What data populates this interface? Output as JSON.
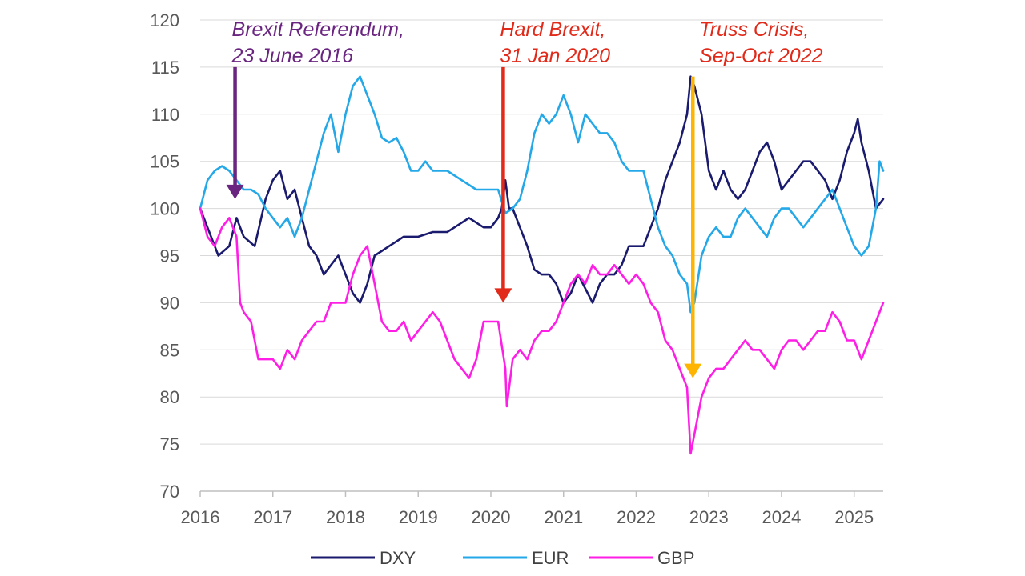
{
  "chart_data": {
    "type": "line",
    "title": "",
    "xlabel": "",
    "ylabel": "",
    "xlim": [
      2016,
      2025.4
    ],
    "ylim": [
      70,
      120
    ],
    "y_ticks": [
      70,
      75,
      80,
      85,
      90,
      95,
      100,
      105,
      110,
      115,
      120
    ],
    "x_ticks": [
      2016,
      2017,
      2018,
      2019,
      2020,
      2021,
      2022,
      2023,
      2024,
      2025
    ],
    "x_tick_labels": [
      "2016",
      "2017",
      "2018",
      "2019",
      "2020",
      "2021",
      "2022",
      "2023",
      "2024",
      "2025"
    ],
    "y_tick_labels": [
      "70",
      "75",
      "80",
      "85",
      "90",
      "95",
      "100",
      "105",
      "110",
      "115",
      "120"
    ],
    "grid": "horizontal",
    "legend_position": "bottom",
    "series": [
      {
        "name": "DXY",
        "color": "#1a1a6e",
        "points": [
          [
            2016.0,
            100
          ],
          [
            2016.1,
            98
          ],
          [
            2016.25,
            95
          ],
          [
            2016.4,
            96
          ],
          [
            2016.5,
            99
          ],
          [
            2016.6,
            97
          ],
          [
            2016.75,
            96
          ],
          [
            2016.9,
            101
          ],
          [
            2017.0,
            103
          ],
          [
            2017.1,
            104
          ],
          [
            2017.2,
            101
          ],
          [
            2017.3,
            102
          ],
          [
            2017.4,
            99
          ],
          [
            2017.5,
            96
          ],
          [
            2017.6,
            95
          ],
          [
            2017.7,
            93
          ],
          [
            2017.8,
            94
          ],
          [
            2017.9,
            95
          ],
          [
            2018.0,
            93
          ],
          [
            2018.1,
            91
          ],
          [
            2018.2,
            90
          ],
          [
            2018.3,
            92
          ],
          [
            2018.4,
            95
          ],
          [
            2018.5,
            95.5
          ],
          [
            2018.6,
            96
          ],
          [
            2018.7,
            96.5
          ],
          [
            2018.8,
            97
          ],
          [
            2018.9,
            97
          ],
          [
            2019.0,
            97
          ],
          [
            2019.2,
            97.5
          ],
          [
            2019.4,
            97.5
          ],
          [
            2019.5,
            98
          ],
          [
            2019.6,
            98.5
          ],
          [
            2019.7,
            99
          ],
          [
            2019.8,
            98.5
          ],
          [
            2019.9,
            98
          ],
          [
            2020.0,
            98
          ],
          [
            2020.1,
            99
          ],
          [
            2020.15,
            100
          ],
          [
            2020.2,
            103
          ],
          [
            2020.25,
            100
          ],
          [
            2020.3,
            100
          ],
          [
            2020.4,
            98
          ],
          [
            2020.5,
            96
          ],
          [
            2020.6,
            93.5
          ],
          [
            2020.7,
            93
          ],
          [
            2020.8,
            93
          ],
          [
            2020.9,
            92
          ],
          [
            2021.0,
            90
          ],
          [
            2021.1,
            91
          ],
          [
            2021.2,
            93
          ],
          [
            2021.3,
            91.5
          ],
          [
            2021.4,
            90
          ],
          [
            2021.5,
            92
          ],
          [
            2021.6,
            93
          ],
          [
            2021.7,
            93
          ],
          [
            2021.8,
            94
          ],
          [
            2021.9,
            96
          ],
          [
            2022.0,
            96
          ],
          [
            2022.1,
            96
          ],
          [
            2022.2,
            98
          ],
          [
            2022.3,
            100
          ],
          [
            2022.4,
            103
          ],
          [
            2022.5,
            105
          ],
          [
            2022.6,
            107
          ],
          [
            2022.7,
            110
          ],
          [
            2022.75,
            114
          ],
          [
            2022.8,
            113
          ],
          [
            2022.9,
            110
          ],
          [
            2023.0,
            104
          ],
          [
            2023.1,
            102
          ],
          [
            2023.2,
            104
          ],
          [
            2023.3,
            102
          ],
          [
            2023.4,
            101
          ],
          [
            2023.5,
            102
          ],
          [
            2023.6,
            104
          ],
          [
            2023.7,
            106
          ],
          [
            2023.8,
            107
          ],
          [
            2023.9,
            105
          ],
          [
            2024.0,
            102
          ],
          [
            2024.1,
            103
          ],
          [
            2024.2,
            104
          ],
          [
            2024.3,
            105
          ],
          [
            2024.4,
            105
          ],
          [
            2024.5,
            104
          ],
          [
            2024.6,
            103
          ],
          [
            2024.7,
            101
          ],
          [
            2024.8,
            103
          ],
          [
            2024.9,
            106
          ],
          [
            2025.0,
            108
          ],
          [
            2025.05,
            109.5
          ],
          [
            2025.1,
            107
          ],
          [
            2025.2,
            104
          ],
          [
            2025.3,
            100
          ],
          [
            2025.4,
            101
          ]
        ]
      },
      {
        "name": "EUR",
        "color": "#24a8e8",
        "points": [
          [
            2016.0,
            100
          ],
          [
            2016.1,
            103
          ],
          [
            2016.2,
            104
          ],
          [
            2016.3,
            104.5
          ],
          [
            2016.4,
            104
          ],
          [
            2016.5,
            103
          ],
          [
            2016.6,
            102
          ],
          [
            2016.7,
            102
          ],
          [
            2016.8,
            101.5
          ],
          [
            2016.9,
            100
          ],
          [
            2017.0,
            99
          ],
          [
            2017.1,
            98
          ],
          [
            2017.2,
            99
          ],
          [
            2017.3,
            97
          ],
          [
            2017.4,
            99
          ],
          [
            2017.5,
            102
          ],
          [
            2017.6,
            105
          ],
          [
            2017.7,
            108
          ],
          [
            2017.8,
            110
          ],
          [
            2017.9,
            106
          ],
          [
            2018.0,
            110
          ],
          [
            2018.1,
            113
          ],
          [
            2018.2,
            114
          ],
          [
            2018.3,
            112
          ],
          [
            2018.4,
            110
          ],
          [
            2018.5,
            107.5
          ],
          [
            2018.6,
            107
          ],
          [
            2018.7,
            107.5
          ],
          [
            2018.8,
            106
          ],
          [
            2018.9,
            104
          ],
          [
            2019.0,
            104
          ],
          [
            2019.1,
            105
          ],
          [
            2019.2,
            104
          ],
          [
            2019.3,
            104
          ],
          [
            2019.4,
            104
          ],
          [
            2019.5,
            103.5
          ],
          [
            2019.6,
            103
          ],
          [
            2019.7,
            102.5
          ],
          [
            2019.8,
            102
          ],
          [
            2019.9,
            102
          ],
          [
            2020.0,
            102
          ],
          [
            2020.1,
            102
          ],
          [
            2020.2,
            99.5
          ],
          [
            2020.3,
            100
          ],
          [
            2020.4,
            101
          ],
          [
            2020.5,
            104
          ],
          [
            2020.6,
            108
          ],
          [
            2020.7,
            110
          ],
          [
            2020.8,
            109
          ],
          [
            2020.9,
            110
          ],
          [
            2021.0,
            112
          ],
          [
            2021.1,
            110
          ],
          [
            2021.2,
            107
          ],
          [
            2021.3,
            110
          ],
          [
            2021.4,
            109
          ],
          [
            2021.5,
            108
          ],
          [
            2021.6,
            108
          ],
          [
            2021.7,
            107
          ],
          [
            2021.8,
            105
          ],
          [
            2021.9,
            104
          ],
          [
            2022.0,
            104
          ],
          [
            2022.1,
            104
          ],
          [
            2022.2,
            101
          ],
          [
            2022.3,
            98
          ],
          [
            2022.4,
            96
          ],
          [
            2022.5,
            95
          ],
          [
            2022.6,
            93
          ],
          [
            2022.7,
            92
          ],
          [
            2022.75,
            89
          ],
          [
            2022.8,
            90
          ],
          [
            2022.9,
            95
          ],
          [
            2023.0,
            97
          ],
          [
            2023.1,
            98
          ],
          [
            2023.2,
            97
          ],
          [
            2023.3,
            97
          ],
          [
            2023.4,
            99
          ],
          [
            2023.5,
            100
          ],
          [
            2023.6,
            99
          ],
          [
            2023.7,
            98
          ],
          [
            2023.8,
            97
          ],
          [
            2023.9,
            99
          ],
          [
            2024.0,
            100
          ],
          [
            2024.1,
            100
          ],
          [
            2024.2,
            99
          ],
          [
            2024.3,
            98
          ],
          [
            2024.4,
            99
          ],
          [
            2024.5,
            100
          ],
          [
            2024.6,
            101
          ],
          [
            2024.7,
            102
          ],
          [
            2024.8,
            100
          ],
          [
            2024.9,
            98
          ],
          [
            2025.0,
            96
          ],
          [
            2025.1,
            95
          ],
          [
            2025.2,
            96
          ],
          [
            2025.3,
            100
          ],
          [
            2025.35,
            105
          ],
          [
            2025.4,
            104
          ]
        ]
      },
      {
        "name": "GBP",
        "color": "#ff1ee6",
        "points": [
          [
            2016.0,
            100
          ],
          [
            2016.1,
            97
          ],
          [
            2016.2,
            96
          ],
          [
            2016.3,
            98
          ],
          [
            2016.4,
            99
          ],
          [
            2016.5,
            97
          ],
          [
            2016.55,
            90
          ],
          [
            2016.6,
            89
          ],
          [
            2016.7,
            88
          ],
          [
            2016.8,
            84
          ],
          [
            2016.9,
            84
          ],
          [
            2017.0,
            84
          ],
          [
            2017.1,
            83
          ],
          [
            2017.2,
            85
          ],
          [
            2017.3,
            84
          ],
          [
            2017.4,
            86
          ],
          [
            2017.5,
            87
          ],
          [
            2017.6,
            88
          ],
          [
            2017.7,
            88
          ],
          [
            2017.8,
            90
          ],
          [
            2017.9,
            90
          ],
          [
            2018.0,
            90
          ],
          [
            2018.1,
            93
          ],
          [
            2018.2,
            95
          ],
          [
            2018.3,
            96
          ],
          [
            2018.4,
            92
          ],
          [
            2018.5,
            88
          ],
          [
            2018.6,
            87
          ],
          [
            2018.7,
            87
          ],
          [
            2018.8,
            88
          ],
          [
            2018.9,
            86
          ],
          [
            2019.0,
            87
          ],
          [
            2019.1,
            88
          ],
          [
            2019.2,
            89
          ],
          [
            2019.3,
            88
          ],
          [
            2019.4,
            86
          ],
          [
            2019.5,
            84
          ],
          [
            2019.6,
            83
          ],
          [
            2019.7,
            82
          ],
          [
            2019.8,
            84
          ],
          [
            2019.9,
            88
          ],
          [
            2020.0,
            88
          ],
          [
            2020.1,
            88
          ],
          [
            2020.2,
            83
          ],
          [
            2020.22,
            79
          ],
          [
            2020.3,
            84
          ],
          [
            2020.4,
            85
          ],
          [
            2020.5,
            84
          ],
          [
            2020.6,
            86
          ],
          [
            2020.7,
            87
          ],
          [
            2020.8,
            87
          ],
          [
            2020.9,
            88
          ],
          [
            2021.0,
            90
          ],
          [
            2021.1,
            92
          ],
          [
            2021.2,
            93
          ],
          [
            2021.3,
            92
          ],
          [
            2021.4,
            94
          ],
          [
            2021.5,
            93
          ],
          [
            2021.6,
            93
          ],
          [
            2021.7,
            94
          ],
          [
            2021.8,
            93
          ],
          [
            2021.9,
            92
          ],
          [
            2022.0,
            93
          ],
          [
            2022.1,
            92
          ],
          [
            2022.2,
            90
          ],
          [
            2022.3,
            89
          ],
          [
            2022.4,
            86
          ],
          [
            2022.5,
            85
          ],
          [
            2022.6,
            83
          ],
          [
            2022.7,
            81
          ],
          [
            2022.75,
            74
          ],
          [
            2022.8,
            76
          ],
          [
            2022.9,
            80
          ],
          [
            2023.0,
            82
          ],
          [
            2023.1,
            83
          ],
          [
            2023.2,
            83
          ],
          [
            2023.3,
            84
          ],
          [
            2023.4,
            85
          ],
          [
            2023.5,
            86
          ],
          [
            2023.6,
            85
          ],
          [
            2023.7,
            85
          ],
          [
            2023.8,
            84
          ],
          [
            2023.9,
            83
          ],
          [
            2024.0,
            85
          ],
          [
            2024.1,
            86
          ],
          [
            2024.2,
            86
          ],
          [
            2024.3,
            85
          ],
          [
            2024.4,
            86
          ],
          [
            2024.5,
            87
          ],
          [
            2024.6,
            87
          ],
          [
            2024.7,
            89
          ],
          [
            2024.8,
            88
          ],
          [
            2024.9,
            86
          ],
          [
            2025.0,
            86
          ],
          [
            2025.1,
            84
          ],
          [
            2025.2,
            86
          ],
          [
            2025.3,
            88
          ],
          [
            2025.4,
            90
          ]
        ]
      }
    ],
    "annotations": [
      {
        "id": "brexit-referendum",
        "line1": "Brexit Referendum,",
        "line2": "23 June 2016",
        "color": "#6a2580",
        "x": 2016.48,
        "y_from": 115,
        "y_to": 101
      },
      {
        "id": "hard-brexit",
        "line1": "Hard Brexit,",
        "line2": "31 Jan 2020",
        "color": "#e12a1a",
        "x": 2020.17,
        "y_from": 115,
        "y_to": 90
      },
      {
        "id": "truss-crisis",
        "line1": "Truss Crisis,",
        "line2": "Sep-Oct 2022",
        "color": "#e12a1a",
        "arrow_color": "#ffb400",
        "x": 2022.78,
        "y_from": 114,
        "y_to": 82
      }
    ]
  }
}
